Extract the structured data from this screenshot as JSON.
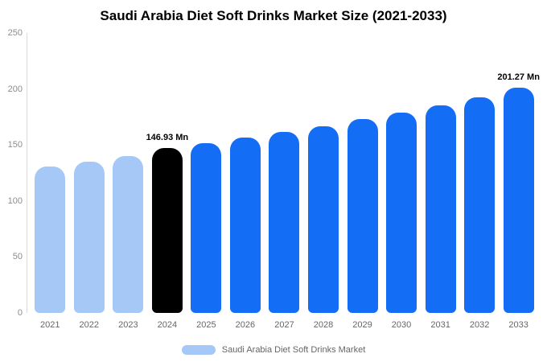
{
  "chart_data": {
    "type": "bar",
    "title": "Saudi Arabia Diet Soft Drinks Market Size (2021-2033)",
    "categories": [
      "2021",
      "2022",
      "2023",
      "2024",
      "2025",
      "2026",
      "2027",
      "2028",
      "2029",
      "2030",
      "2031",
      "2032",
      "2033"
    ],
    "values": [
      130.5,
      135.3,
      140.2,
      146.93,
      151.3,
      156.3,
      161.3,
      167.0,
      172.8,
      178.8,
      185.1,
      192.8,
      201.27
    ],
    "unit": "Mn",
    "ylim": [
      0,
      250
    ],
    "yticks": [
      0,
      50,
      100,
      150,
      200,
      250
    ],
    "grid": false,
    "colors": [
      "#a5c8f7",
      "#a5c8f7",
      "#a5c8f7",
      "#000000",
      "#146ef5",
      "#146ef5",
      "#146ef5",
      "#146ef5",
      "#146ef5",
      "#146ef5",
      "#146ef5",
      "#146ef5",
      "#146ef5"
    ],
    "annotations": [
      {
        "index": 3,
        "text": "146.93 Mn"
      },
      {
        "index": 12,
        "text": "201.27 Mn"
      }
    ],
    "legend": {
      "label": "Saudi Arabia Diet Soft Drinks Market",
      "position": "bottom",
      "swatch_color": "#a5c8f7"
    },
    "accent_colors": {
      "light_blue": "#a5c8f7",
      "blue": "#146ef5",
      "highlight_black": "#000000"
    }
  }
}
